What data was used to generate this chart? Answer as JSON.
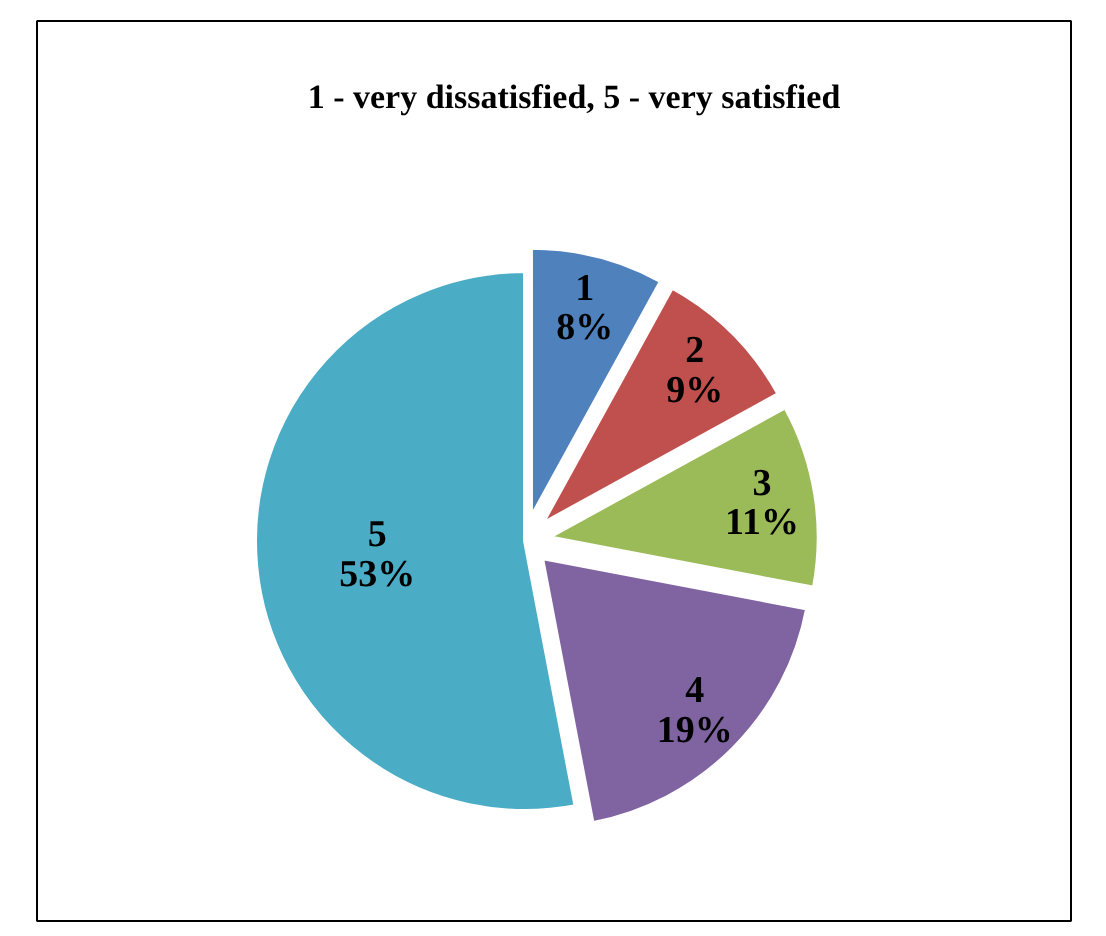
{
  "chart_data": {
    "type": "pie",
    "title": "1 - very dissatisfied, 5 - very satisfied",
    "categories": [
      "1",
      "2",
      "3",
      "4",
      "5"
    ],
    "values": [
      8,
      9,
      11,
      19,
      53
    ],
    "colors": [
      "#4f81bd",
      "#c0504d",
      "#9bbb59",
      "#8064a2",
      "#4bacc6"
    ],
    "value_labels": [
      "8%",
      "9%",
      "11%",
      "19%",
      "53%"
    ]
  }
}
